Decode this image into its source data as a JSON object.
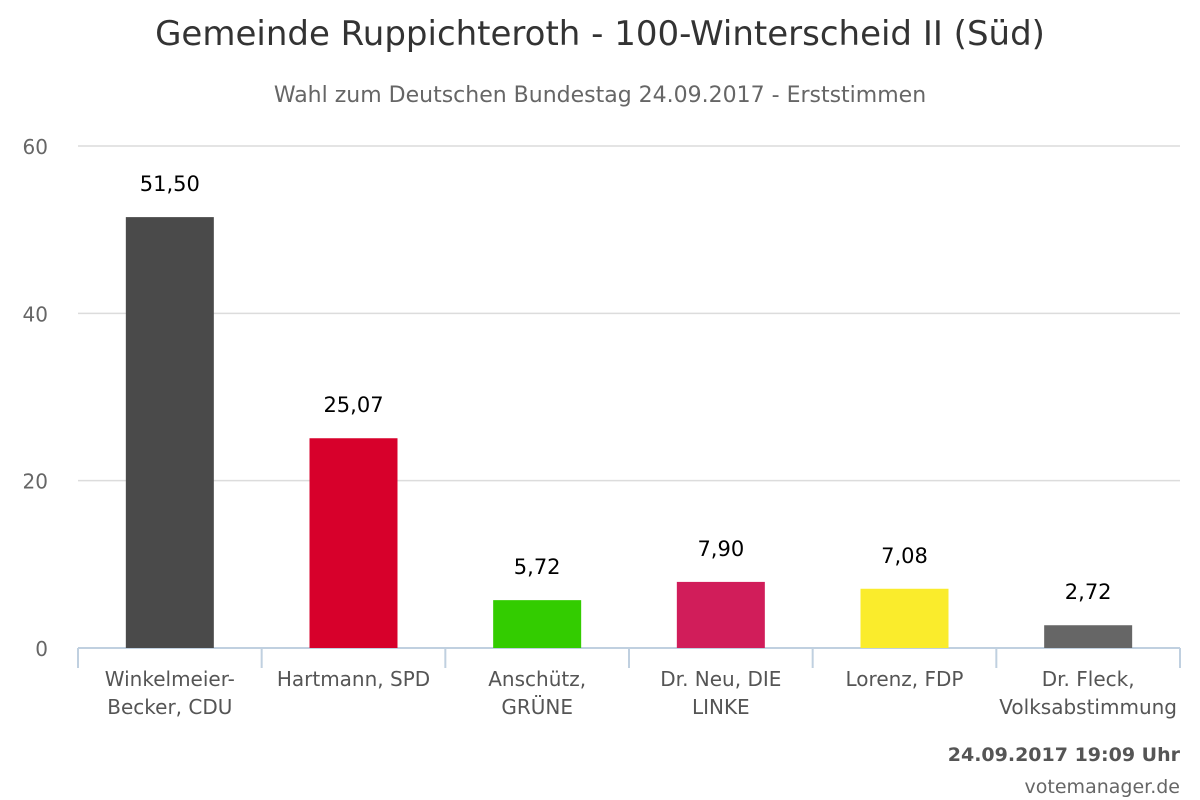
{
  "chart_data": {
    "type": "bar",
    "title": "Gemeinde Ruppichteroth - 100-Winterscheid II (Süd)",
    "subtitle": "Wahl zum Deutschen Bundestag 24.09.2017 - Erststimmen",
    "categories": [
      [
        "Winkelmeier-",
        "Becker, CDU"
      ],
      [
        "Hartmann, SPD"
      ],
      [
        "Anschütz,",
        "GRÜNE"
      ],
      [
        "Dr. Neu, DIE",
        "LINKE"
      ],
      [
        "Lorenz, FDP"
      ],
      [
        "Dr. Fleck,",
        "Volksabstimmung"
      ]
    ],
    "values": [
      51.5,
      25.07,
      5.72,
      7.9,
      7.08,
      2.72
    ],
    "value_labels": [
      "51,50",
      "25,07",
      "5,72",
      "7,90",
      "7,08",
      "2,72"
    ],
    "colors": [
      "#4a4a4a",
      "#d7002b",
      "#33cc00",
      "#d11d5a",
      "#faec2c",
      "#666666"
    ],
    "ylim": [
      0,
      60
    ],
    "yticks": [
      0,
      20,
      40,
      60
    ],
    "grid": true,
    "xlabel": "",
    "ylabel": ""
  },
  "footer": {
    "timestamp": "24.09.2017 19:09 Uhr",
    "credit": "votemanager.de"
  }
}
